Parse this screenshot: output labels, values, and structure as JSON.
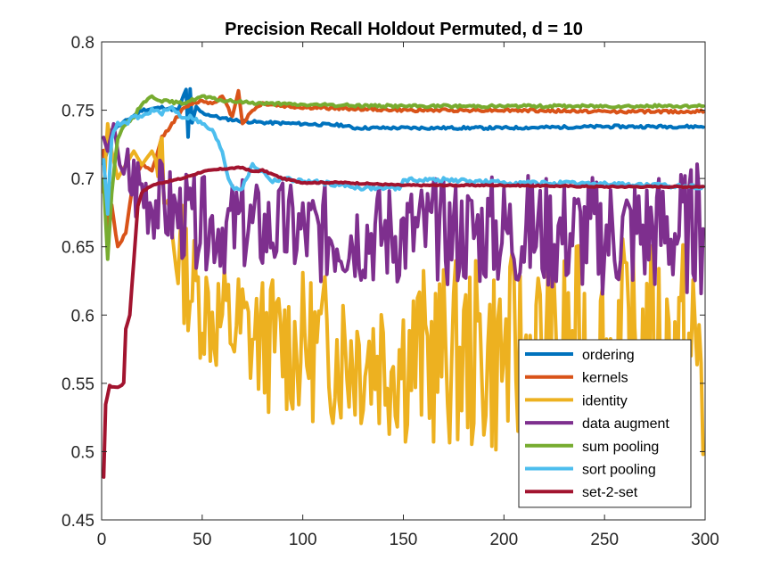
{
  "chart_data": {
    "type": "line",
    "title": "Precision Recall Holdout Permuted, d = 10",
    "xlabel": "",
    "ylabel": "",
    "xlim": [
      0,
      300
    ],
    "ylim": [
      0.45,
      0.8
    ],
    "xticks": [
      0,
      50,
      100,
      150,
      200,
      250,
      300
    ],
    "xtick_labels": [
      "0",
      "50",
      "100",
      "150",
      "200",
      "250",
      "300"
    ],
    "yticks": [
      0.45,
      0.5,
      0.55,
      0.6,
      0.65,
      0.7,
      0.75,
      0.8
    ],
    "ytick_labels": [
      "0.45",
      "0.5",
      "0.55",
      "0.6",
      "0.65",
      "0.7",
      "0.75",
      "0.8"
    ],
    "grid": false,
    "legend_position": "lower-right",
    "series": [
      {
        "name": "ordering",
        "color": "#0072BD",
        "noise": 0.001,
        "points": [
          [
            1,
            0.71
          ],
          [
            5,
            0.735
          ],
          [
            10,
            0.74
          ],
          [
            20,
            0.75
          ],
          [
            30,
            0.752
          ],
          [
            38,
            0.75
          ],
          [
            42,
            0.765
          ],
          [
            43,
            0.73
          ],
          [
            44,
            0.766
          ],
          [
            45,
            0.74
          ],
          [
            47,
            0.752
          ],
          [
            50,
            0.748
          ],
          [
            60,
            0.744
          ],
          [
            70,
            0.742
          ],
          [
            80,
            0.741
          ],
          [
            100,
            0.74
          ],
          [
            120,
            0.739
          ],
          [
            125,
            0.737
          ],
          [
            150,
            0.737
          ],
          [
            200,
            0.737
          ],
          [
            250,
            0.738
          ],
          [
            299,
            0.738
          ]
        ]
      },
      {
        "name": "kernels",
        "color": "#D95319",
        "noise": 0.001,
        "points": [
          [
            1,
            0.72
          ],
          [
            3,
            0.66
          ],
          [
            5,
            0.68
          ],
          [
            8,
            0.65
          ],
          [
            12,
            0.66
          ],
          [
            16,
            0.7
          ],
          [
            20,
            0.71
          ],
          [
            25,
            0.705
          ],
          [
            30,
            0.73
          ],
          [
            35,
            0.74
          ],
          [
            40,
            0.75
          ],
          [
            45,
            0.755
          ],
          [
            50,
            0.757
          ],
          [
            55,
            0.755
          ],
          [
            60,
            0.76
          ],
          [
            65,
            0.745
          ],
          [
            68,
            0.765
          ],
          [
            70,
            0.74
          ],
          [
            75,
            0.75
          ],
          [
            80,
            0.755
          ],
          [
            90,
            0.753
          ],
          [
            100,
            0.752
          ],
          [
            150,
            0.75
          ],
          [
            200,
            0.75
          ],
          [
            250,
            0.749
          ],
          [
            299,
            0.749
          ]
        ]
      },
      {
        "name": "identity",
        "color": "#EDB120",
        "noise": 0.0,
        "wiggle": {
          "start": 28,
          "end": 300,
          "amp_start": 0.025,
          "amp_end": 0.06,
          "seed": 3,
          "mean_points": [
            [
              28,
              0.71
            ],
            [
              35,
              0.66
            ],
            [
              45,
              0.62
            ],
            [
              55,
              0.6
            ],
            [
              80,
              0.58
            ],
            [
              120,
              0.575
            ],
            [
              150,
              0.57
            ],
            [
              200,
              0.57
            ],
            [
              250,
              0.57
            ],
            [
              299,
              0.565
            ]
          ]
        },
        "points": [
          [
            1,
            0.69
          ],
          [
            3,
            0.74
          ],
          [
            5,
            0.72
          ],
          [
            8,
            0.7
          ],
          [
            12,
            0.71
          ],
          [
            16,
            0.72
          ],
          [
            20,
            0.71
          ],
          [
            25,
            0.72
          ],
          [
            28,
            0.71
          ],
          [
            299,
            0.498
          ]
        ]
      },
      {
        "name": "data augment",
        "color": "#7E2F8E",
        "noise": 0.0,
        "wiggle": {
          "start": 12,
          "end": 300,
          "amp_start": 0.02,
          "amp_end": 0.03,
          "seed": 7,
          "mean_points": [
            [
              12,
              0.7
            ],
            [
              30,
              0.68
            ],
            [
              40,
              0.67
            ],
            [
              60,
              0.665
            ],
            [
              100,
              0.66
            ],
            [
              150,
              0.66
            ],
            [
              200,
              0.66
            ],
            [
              250,
              0.66
            ],
            [
              299,
              0.663
            ]
          ]
        },
        "points": [
          [
            1,
            0.73
          ],
          [
            3,
            0.72
          ],
          [
            6,
            0.74
          ],
          [
            9,
            0.71
          ],
          [
            12,
            0.7
          ],
          [
            299,
            0.663
          ]
        ]
      },
      {
        "name": "sum pooling",
        "color": "#77AC30",
        "noise": 0.001,
        "points": [
          [
            1,
            0.7
          ],
          [
            3,
            0.64
          ],
          [
            5,
            0.69
          ],
          [
            8,
            0.73
          ],
          [
            12,
            0.74
          ],
          [
            16,
            0.745
          ],
          [
            20,
            0.755
          ],
          [
            25,
            0.76
          ],
          [
            30,
            0.757
          ],
          [
            40,
            0.755
          ],
          [
            50,
            0.76
          ],
          [
            60,
            0.757
          ],
          [
            70,
            0.756
          ],
          [
            80,
            0.755
          ],
          [
            100,
            0.754
          ],
          [
            150,
            0.753
          ],
          [
            200,
            0.753
          ],
          [
            250,
            0.753
          ],
          [
            299,
            0.753
          ]
        ]
      },
      {
        "name": "sort pooling",
        "color": "#4DBEEE",
        "noise": 0.0015,
        "points": [
          [
            1,
            0.715
          ],
          [
            3,
            0.675
          ],
          [
            5,
            0.73
          ],
          [
            8,
            0.74
          ],
          [
            12,
            0.74
          ],
          [
            16,
            0.745
          ],
          [
            20,
            0.745
          ],
          [
            25,
            0.75
          ],
          [
            30,
            0.748
          ],
          [
            35,
            0.752
          ],
          [
            40,
            0.745
          ],
          [
            45,
            0.745
          ],
          [
            50,
            0.74
          ],
          [
            55,
            0.735
          ],
          [
            60,
            0.72
          ],
          [
            63,
            0.7
          ],
          [
            66,
            0.693
          ],
          [
            70,
            0.693
          ],
          [
            75,
            0.71
          ],
          [
            80,
            0.705
          ],
          [
            85,
            0.698
          ],
          [
            90,
            0.7
          ],
          [
            100,
            0.698
          ],
          [
            110,
            0.697
          ],
          [
            120,
            0.695
          ],
          [
            130,
            0.693
          ],
          [
            140,
            0.693
          ],
          [
            148,
            0.693
          ],
          [
            150,
            0.699
          ],
          [
            170,
            0.699
          ],
          [
            200,
            0.697
          ],
          [
            250,
            0.696
          ],
          [
            299,
            0.694
          ]
        ]
      },
      {
        "name": "set-2-set",
        "color": "#A2142F",
        "noise": 0.0005,
        "points": [
          [
            1,
            0.481
          ],
          [
            2,
            0.535
          ],
          [
            4,
            0.548
          ],
          [
            8,
            0.547
          ],
          [
            11,
            0.55
          ],
          [
            12,
            0.59
          ],
          [
            14,
            0.6
          ],
          [
            16,
            0.64
          ],
          [
            18,
            0.68
          ],
          [
            20,
            0.69
          ],
          [
            25,
            0.695
          ],
          [
            30,
            0.697
          ],
          [
            40,
            0.7
          ],
          [
            50,
            0.705
          ],
          [
            60,
            0.707
          ],
          [
            70,
            0.708
          ],
          [
            75,
            0.705
          ],
          [
            80,
            0.706
          ],
          [
            90,
            0.7
          ],
          [
            100,
            0.697
          ],
          [
            120,
            0.697
          ],
          [
            150,
            0.695
          ],
          [
            200,
            0.695
          ],
          [
            250,
            0.694
          ],
          [
            299,
            0.694
          ]
        ]
      }
    ]
  }
}
